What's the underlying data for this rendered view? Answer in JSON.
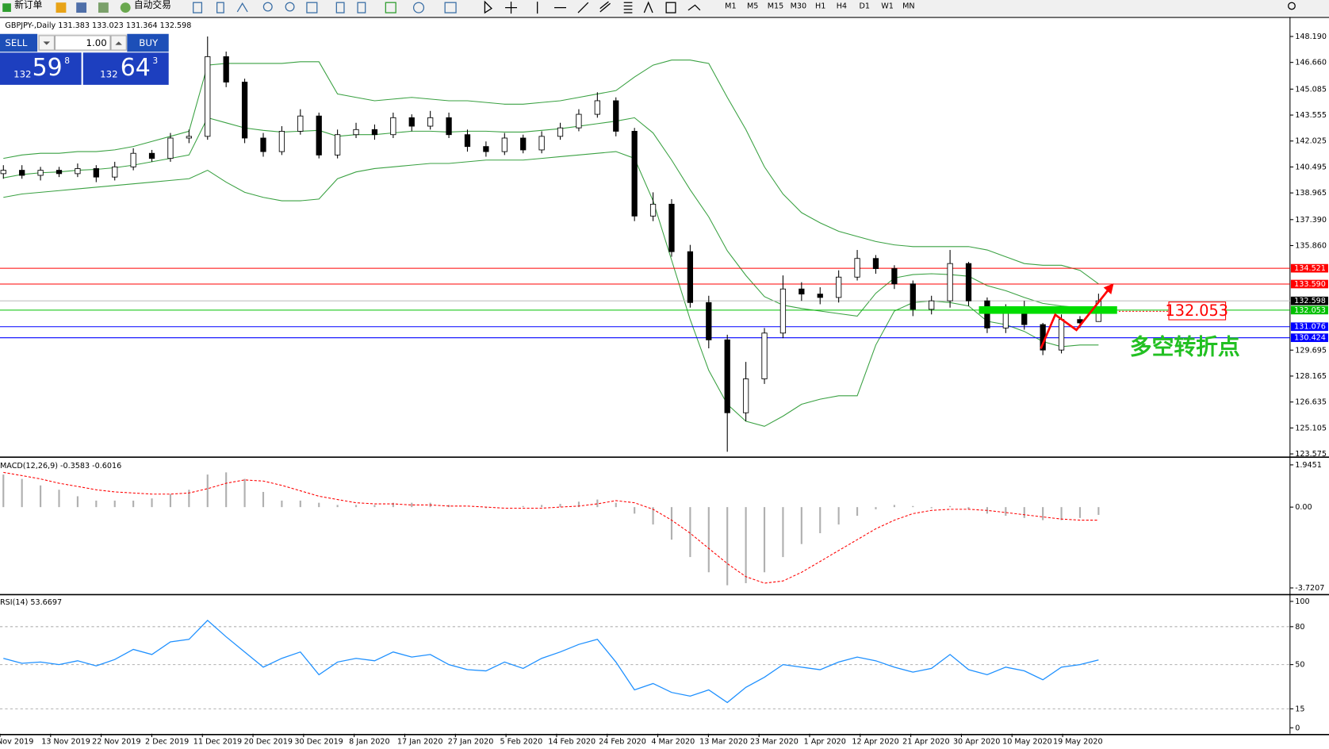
{
  "toolbar": {
    "new_order": "新订单",
    "auto_trading": "自动交易",
    "timeframes": [
      "M1",
      "M5",
      "M15",
      "M30",
      "H1",
      "H4",
      "D1",
      "W1",
      "MN"
    ]
  },
  "trade_panel": {
    "sell": "SELL",
    "buy": "BUY",
    "volume": "1.00",
    "sell_price": {
      "big": "132",
      "main": "59",
      "small": "8"
    },
    "buy_price": {
      "big": "132",
      "main": "64",
      "small": "3"
    }
  },
  "chart_data": [
    {
      "type": "candlestick",
      "title": "GBPJPY-,Daily  131.383 133.023 131.364 132.598",
      "up_color": "#ffffff",
      "down_color": "#000000",
      "open": [
        140.1,
        140.3,
        140.0,
        140.3,
        140.1,
        140.4,
        139.9,
        140.5,
        141.3,
        141.0,
        142.2,
        142.3,
        147.0,
        145.5,
        142.2,
        141.4,
        142.6,
        143.5,
        141.2,
        142.4,
        142.7,
        142.4,
        143.4,
        142.9,
        143.4,
        142.4,
        141.7,
        141.4,
        142.2,
        141.5,
        142.3,
        142.8,
        143.6,
        144.4,
        142.6,
        137.6,
        138.3,
        135.5,
        132.5,
        130.3,
        126.0,
        128.0,
        130.7,
        133.3,
        133.0,
        132.8,
        134.0,
        135.1,
        134.5,
        133.6,
        132.1,
        132.6,
        134.8,
        132.6,
        131.0,
        132.1,
        131.2,
        129.7,
        131.5,
        131.383
      ],
      "high": [
        140.6,
        140.6,
        140.5,
        140.5,
        140.7,
        140.6,
        140.8,
        141.6,
        141.5,
        142.5,
        142.7,
        148.19,
        147.3,
        145.7,
        142.5,
        142.9,
        143.9,
        143.7,
        142.7,
        143.1,
        143.0,
        143.7,
        143.6,
        143.8,
        143.7,
        142.7,
        142.0,
        142.5,
        142.4,
        142.6,
        143.1,
        143.9,
        144.9,
        144.6,
        142.8,
        139.0,
        138.6,
        135.9,
        132.9,
        130.6,
        129.0,
        131.0,
        134.1,
        133.7,
        133.4,
        134.4,
        135.6,
        135.3,
        134.7,
        133.8,
        132.9,
        135.6,
        134.9,
        132.8,
        132.4,
        132.6,
        131.3,
        131.8,
        131.7,
        133.023
      ],
      "low": [
        139.8,
        139.8,
        139.7,
        139.9,
        139.9,
        139.6,
        139.7,
        140.3,
        140.8,
        140.8,
        141.9,
        142.1,
        145.2,
        141.9,
        141.1,
        141.2,
        142.4,
        141.0,
        141.0,
        142.2,
        142.1,
        142.2,
        142.6,
        142.7,
        142.2,
        141.4,
        141.1,
        141.2,
        141.3,
        141.3,
        142.1,
        142.6,
        143.4,
        142.3,
        137.3,
        137.3,
        135.2,
        132.2,
        129.8,
        123.7,
        125.5,
        127.7,
        130.4,
        132.6,
        132.4,
        132.5,
        133.8,
        134.2,
        133.3,
        131.7,
        131.8,
        132.2,
        132.3,
        130.7,
        130.7,
        130.9,
        129.4,
        129.5,
        131.0,
        131.364
      ],
      "close": [
        140.3,
        140.0,
        140.3,
        140.1,
        140.4,
        139.9,
        140.5,
        141.3,
        141.0,
        142.2,
        142.3,
        147.0,
        145.5,
        142.2,
        141.4,
        142.6,
        143.5,
        141.2,
        142.4,
        142.7,
        142.4,
        143.4,
        142.9,
        143.4,
        142.4,
        141.7,
        141.4,
        142.2,
        141.5,
        142.3,
        142.8,
        143.6,
        144.4,
        142.6,
        137.6,
        138.3,
        135.5,
        132.5,
        130.3,
        126.0,
        128.0,
        130.7,
        133.3,
        133.0,
        132.8,
        134.0,
        135.1,
        134.5,
        133.6,
        132.1,
        132.6,
        134.8,
        132.6,
        131.0,
        132.1,
        131.2,
        129.7,
        131.5,
        131.3,
        132.598
      ],
      "bands": {
        "color": "#3aa142",
        "upper": [
          141.0,
          141.2,
          141.3,
          141.3,
          141.4,
          141.4,
          141.5,
          141.7,
          142.0,
          142.3,
          142.6,
          146.5,
          146.6,
          146.6,
          146.6,
          146.6,
          146.7,
          146.7,
          144.8,
          144.6,
          144.4,
          144.5,
          144.6,
          144.5,
          144.4,
          144.4,
          144.3,
          144.2,
          144.2,
          144.3,
          144.4,
          144.6,
          144.8,
          145.0,
          145.8,
          146.5,
          146.8,
          146.8,
          146.6,
          144.6,
          142.7,
          140.5,
          138.9,
          137.8,
          137.2,
          136.7,
          136.4,
          136.1,
          135.9,
          135.8,
          135.8,
          135.8,
          135.8,
          135.6,
          135.2,
          134.8,
          134.7,
          134.7,
          134.4,
          133.6
        ],
        "middle": [
          139.85,
          140.05,
          140.15,
          140.2,
          140.3,
          140.35,
          140.45,
          140.6,
          140.8,
          141.0,
          141.2,
          143.4,
          143.1,
          142.8,
          142.65,
          142.55,
          142.6,
          142.65,
          142.3,
          142.4,
          142.4,
          142.5,
          142.6,
          142.6,
          142.55,
          142.6,
          142.6,
          142.55,
          142.55,
          142.65,
          142.75,
          142.9,
          143.05,
          143.2,
          143.4,
          142.5,
          140.9,
          139.15,
          137.55,
          135.55,
          134.1,
          132.85,
          132.35,
          132.15,
          132.0,
          131.85,
          131.7,
          133.05,
          133.95,
          134.15,
          134.2,
          134.15,
          134.05,
          133.5,
          133.2,
          132.8,
          132.45,
          132.3,
          132.2,
          131.8
        ],
        "lower": [
          138.7,
          138.9,
          139.0,
          139.1,
          139.2,
          139.3,
          139.4,
          139.5,
          139.6,
          139.7,
          139.8,
          140.3,
          139.6,
          139.0,
          138.7,
          138.5,
          138.5,
          138.6,
          139.8,
          140.2,
          140.4,
          140.5,
          140.6,
          140.7,
          140.7,
          140.8,
          140.9,
          140.9,
          140.9,
          141.0,
          141.1,
          141.2,
          141.3,
          141.4,
          141.0,
          138.5,
          135.0,
          131.5,
          128.5,
          126.5,
          125.5,
          125.2,
          125.8,
          126.5,
          126.8,
          127.0,
          127.0,
          130.0,
          132.0,
          132.5,
          132.6,
          132.5,
          132.3,
          131.4,
          131.2,
          130.8,
          130.2,
          129.9,
          130.0,
          130.0
        ]
      },
      "ylim": [
        123.43,
        149.24
      ],
      "yticks": [
        {
          "value": 148.19,
          "label": "148.190"
        },
        {
          "value": 146.66,
          "label": "146.660"
        },
        {
          "value": 145.085,
          "label": "145.085"
        },
        {
          "value": 143.555,
          "label": "143.555"
        },
        {
          "value": 142.025,
          "label": "142.025"
        },
        {
          "value": 140.495,
          "label": "140.495"
        },
        {
          "value": 138.965,
          "label": "138.965"
        },
        {
          "value": 137.39,
          "label": "137.390"
        },
        {
          "value": 135.86,
          "label": "135.860"
        },
        {
          "value": 129.695,
          "label": "129.695"
        },
        {
          "value": 128.165,
          "label": "128.165"
        },
        {
          "value": 126.635,
          "label": "126.635"
        },
        {
          "value": 125.105,
          "label": "125.105"
        },
        {
          "value": 123.575,
          "label": "123.575"
        }
      ],
      "hlines": [
        {
          "value": 134.521,
          "label": "134.521",
          "color": "#ff0000"
        },
        {
          "value": 133.59,
          "label": "133.590",
          "color": "#ff0000"
        },
        {
          "value": 132.598,
          "label": "132.598",
          "color": "#000000"
        },
        {
          "value": 132.053,
          "label": "132.053",
          "color": "#00c000"
        },
        {
          "value": 131.076,
          "label": "131.076",
          "color": "#0000ff"
        },
        {
          "value": 130.424,
          "label": "130.424",
          "color": "#0000ff"
        }
      ],
      "annotations": {
        "price_box": "132.053",
        "text": "多空转折点"
      }
    },
    {
      "type": "macd",
      "title": "MACD(12,26,9) -0.3583 -0.6016",
      "histogram_color": "#b0b0b0",
      "signal_color": "#ff0000",
      "histogram": [
        1.5,
        1.3,
        1.0,
        0.8,
        0.5,
        0.3,
        0.3,
        0.3,
        0.4,
        0.6,
        0.8,
        1.5,
        1.6,
        1.3,
        0.7,
        0.3,
        0.3,
        0.2,
        0.1,
        0.1,
        0.1,
        0.2,
        0.2,
        0.2,
        0.1,
        0.0,
        -0.05,
        0.0,
        0.05,
        0.1,
        0.15,
        0.25,
        0.35,
        0.2,
        -0.3,
        -0.8,
        -1.5,
        -2.3,
        -3.0,
        -3.6,
        -3.5,
        -3.0,
        -2.3,
        -1.7,
        -1.2,
        -0.8,
        -0.4,
        -0.1,
        0.1,
        0.05,
        -0.05,
        0.05,
        -0.1,
        -0.3,
        -0.4,
        -0.5,
        -0.6,
        -0.6,
        -0.5,
        -0.3583
      ],
      "signal": [
        1.6,
        1.45,
        1.3,
        1.1,
        0.95,
        0.8,
        0.7,
        0.65,
        0.6,
        0.6,
        0.65,
        0.85,
        1.1,
        1.25,
        1.2,
        1.0,
        0.75,
        0.5,
        0.35,
        0.2,
        0.15,
        0.15,
        0.1,
        0.1,
        0.05,
        0.05,
        0.0,
        -0.05,
        -0.05,
        -0.05,
        0.0,
        0.05,
        0.15,
        0.3,
        0.2,
        -0.1,
        -0.6,
        -1.2,
        -1.9,
        -2.6,
        -3.2,
        -3.5,
        -3.4,
        -3.0,
        -2.5,
        -2.0,
        -1.5,
        -1.0,
        -0.6,
        -0.3,
        -0.15,
        -0.1,
        -0.1,
        -0.15,
        -0.25,
        -0.35,
        -0.45,
        -0.55,
        -0.6,
        -0.6016
      ],
      "ylim": [
        -3.99,
        2.22
      ],
      "yticks": [
        1.9451,
        {
          "value": 0,
          "label": "0.00"
        },
        -3.7207
      ]
    },
    {
      "type": "line",
      "title": "RSI(14) 53.6697",
      "color": "#1e90ff",
      "values": [
        55,
        51,
        52,
        50,
        53,
        49,
        54,
        62,
        58,
        68,
        70,
        85,
        72,
        60,
        48,
        55,
        60,
        42,
        52,
        55,
        53,
        60,
        56,
        58,
        50,
        46,
        45,
        52,
        47,
        55,
        60,
        66,
        70,
        52,
        30,
        35,
        28,
        25,
        30,
        20,
        32,
        40,
        50,
        48,
        46,
        52,
        56,
        53,
        48,
        44,
        47,
        58,
        46,
        42,
        48,
        45,
        38,
        48,
        50,
        53.6697
      ],
      "ylim": [
        -4.7,
        104.7
      ],
      "yticks": [
        100,
        80,
        50,
        15,
        0
      ],
      "dashed_levels": [
        80,
        50,
        15
      ]
    }
  ],
  "time_axis": {
    "labels": [
      "Nov 2019",
      "13 Nov 2019",
      "22 Nov 2019",
      "2 Dec 2019",
      "11 Dec 2019",
      "20 Dec 2019",
      "30 Dec 2019",
      "8 Jan 2020",
      "17 Jan 2020",
      "27 Jan 2020",
      "5 Feb 2020",
      "14 Feb 2020",
      "24 Feb 2020",
      "4 Mar 2020",
      "13 Mar 2020",
      "23 Mar 2020",
      "1 Apr 2020",
      "12 Apr 2020",
      "21 Apr 2020",
      "30 Apr 2020",
      "10 May 2020",
      "19 May 2020"
    ]
  }
}
